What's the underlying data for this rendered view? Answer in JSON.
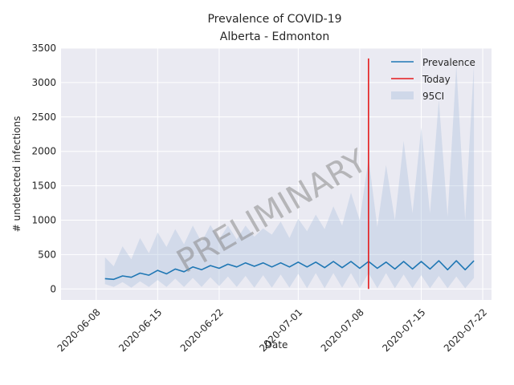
{
  "chart_data": {
    "type": "line",
    "title": "Prevalence of COVID-19",
    "subtitle": "Alberta - Edmonton",
    "xlabel": "Date",
    "ylabel": "# undetected infections",
    "x_range": [
      "2020-06-04",
      "2020-07-23"
    ],
    "ylim": [
      -160,
      3500
    ],
    "y_ticks": [
      0,
      500,
      1000,
      1500,
      2000,
      2500,
      3000,
      3500
    ],
    "x_ticks": [
      "2020-06-08",
      "2020-06-15",
      "2020-06-22",
      "2020-07-01",
      "2020-07-08",
      "2020-07-15",
      "2020-07-22"
    ],
    "grid": true,
    "legend_position": "top-right",
    "watermark": "PRELIMINARY",
    "series": [
      {
        "name": "Prevalence",
        "kind": "line",
        "color": "#1f77b4",
        "x": [
          "2020-06-09",
          "2020-06-10",
          "2020-06-11",
          "2020-06-12",
          "2020-06-13",
          "2020-06-14",
          "2020-06-15",
          "2020-06-16",
          "2020-06-17",
          "2020-06-18",
          "2020-06-19",
          "2020-06-20",
          "2020-06-21",
          "2020-06-22",
          "2020-06-23",
          "2020-06-24",
          "2020-06-25",
          "2020-06-26",
          "2020-06-27",
          "2020-06-28",
          "2020-06-29",
          "2020-06-30",
          "2020-07-01",
          "2020-07-02",
          "2020-07-03",
          "2020-07-04",
          "2020-07-05",
          "2020-07-06",
          "2020-07-07",
          "2020-07-08",
          "2020-07-09",
          "2020-07-10",
          "2020-07-11",
          "2020-07-12",
          "2020-07-13",
          "2020-07-14",
          "2020-07-15",
          "2020-07-16",
          "2020-07-17",
          "2020-07-18",
          "2020-07-19",
          "2020-07-20",
          "2020-07-21"
        ],
        "y": [
          150,
          140,
          190,
          170,
          230,
          200,
          270,
          220,
          290,
          250,
          320,
          280,
          340,
          300,
          360,
          320,
          380,
          330,
          380,
          320,
          380,
          320,
          390,
          320,
          390,
          310,
          400,
          310,
          400,
          300,
          400,
          300,
          390,
          290,
          400,
          290,
          400,
          290,
          410,
          280,
          410,
          280,
          410
        ]
      },
      {
        "name": "Today",
        "kind": "vline",
        "color": "#e41a1c",
        "x": "2020-07-09",
        "y_range": [
          0,
          3350
        ]
      },
      {
        "name": "95CI",
        "kind": "band",
        "color": "#b0c4de",
        "x": [
          "2020-06-09",
          "2020-06-10",
          "2020-06-11",
          "2020-06-12",
          "2020-06-13",
          "2020-06-14",
          "2020-06-15",
          "2020-06-16",
          "2020-06-17",
          "2020-06-18",
          "2020-06-19",
          "2020-06-20",
          "2020-06-21",
          "2020-06-22",
          "2020-06-23",
          "2020-06-24",
          "2020-06-25",
          "2020-06-26",
          "2020-06-27",
          "2020-06-28",
          "2020-06-29",
          "2020-06-30",
          "2020-07-01",
          "2020-07-02",
          "2020-07-03",
          "2020-07-04",
          "2020-07-05",
          "2020-07-06",
          "2020-07-07",
          "2020-07-08",
          "2020-07-09",
          "2020-07-10",
          "2020-07-11",
          "2020-07-12",
          "2020-07-13",
          "2020-07-14",
          "2020-07-15",
          "2020-07-16",
          "2020-07-17",
          "2020-07-18",
          "2020-07-19",
          "2020-07-20",
          "2020-07-21"
        ],
        "lower": [
          70,
          30,
          100,
          20,
          110,
          30,
          130,
          30,
          150,
          30,
          160,
          30,
          170,
          40,
          180,
          30,
          190,
          20,
          200,
          20,
          210,
          20,
          220,
          10,
          230,
          10,
          230,
          20,
          230,
          10,
          230,
          10,
          230,
          10,
          210,
          10,
          200,
          10,
          190,
          10,
          180,
          10,
          160
        ],
        "upper": [
          460,
          330,
          620,
          430,
          740,
          520,
          820,
          610,
          870,
          650,
          920,
          680,
          930,
          720,
          920,
          720,
          920,
          760,
          880,
          790,
          980,
          740,
          1020,
          840,
          1080,
          870,
          1200,
          920,
          1400,
          1000,
          1900,
          900,
          1800,
          1000,
          2150,
          1100,
          2350,
          1100,
          2750,
          1050,
          3250,
          1000,
          3270
        ]
      }
    ]
  }
}
